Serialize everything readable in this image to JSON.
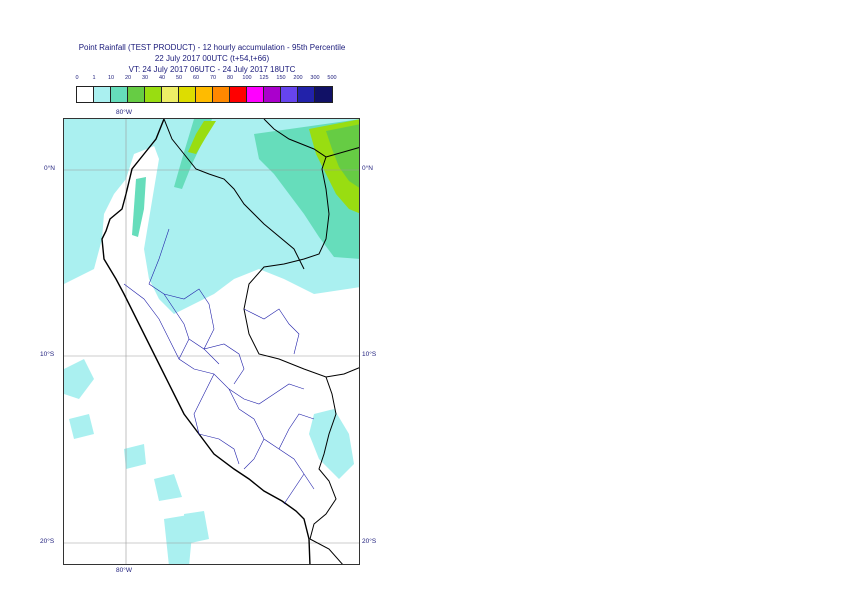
{
  "title": {
    "line1": "Point Rainfall (TEST PRODUCT) - 12 hourly accumulation - 95th Percentile",
    "line2": "22 July 2017 00UTC (t+54,t+66)",
    "line3": "VT: 24 July 2017 06UTC - 24 July 2017 18UTC"
  },
  "legend": {
    "ticks": [
      "0",
      "1",
      "10",
      "20",
      "30",
      "40",
      "50",
      "60",
      "70",
      "80",
      "100",
      "125",
      "150",
      "200",
      "300",
      "500"
    ],
    "colors": [
      "#ffffff",
      "#aaf0f0",
      "#66ddbb",
      "#66cc44",
      "#99dd11",
      "#eeee66",
      "#dddd00",
      "#ffbb00",
      "#ff8800",
      "#ff0000",
      "#ff00ff",
      "#aa00cc",
      "#6644ee",
      "#2222aa",
      "#111166"
    ]
  },
  "axes": {
    "lon_top": "80°W",
    "lon_bottom": "80°W",
    "lat_0_left": "0°N",
    "lat_0_right": "0°N",
    "lat_10_left": "10°S",
    "lat_10_right": "10°S",
    "lat_20_left": "20°S",
    "lat_20_right": "20°S"
  }
}
